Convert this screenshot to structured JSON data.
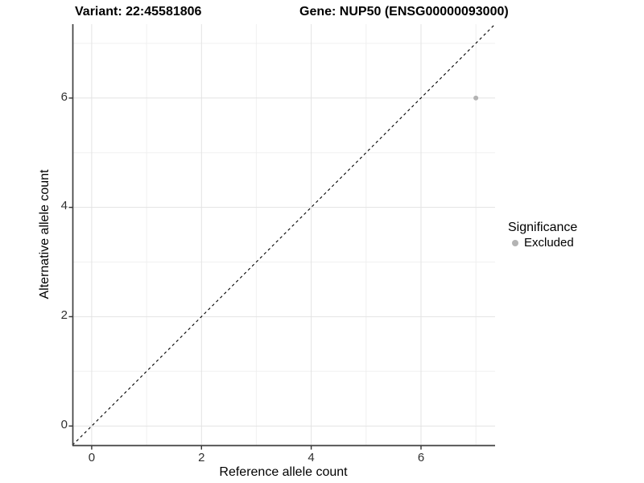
{
  "figure": {
    "titles": {
      "left": "Variant: 22:45581806",
      "right": "Gene: NUP50 (ENSG00000093000)"
    }
  },
  "chart_data": {
    "type": "scatter",
    "xlabel": "Reference allele count",
    "ylabel": "Alternative allele count",
    "xlim": [
      -0.35,
      7.35
    ],
    "ylim": [
      -0.35,
      7.35
    ],
    "xticks": [
      0,
      2,
      4,
      6
    ],
    "yticks": [
      0,
      2,
      4,
      6
    ],
    "grid": "on, every 1 unit, light gray, white panel background",
    "identity_line": {
      "equation": "y = x",
      "style": "dashed",
      "color": "#000000"
    },
    "series": [
      {
        "name": "Excluded",
        "color": "#b3b3b3",
        "marker": "circle",
        "points": [
          {
            "x": 7,
            "y": 6
          }
        ]
      }
    ],
    "legend": {
      "title": "Significance",
      "position": "right",
      "entries": [
        {
          "label": "Excluded",
          "color": "#b3b3b3",
          "marker": "circle"
        }
      ]
    }
  },
  "colors": {
    "axis_line": "#404040",
    "tick_mark": "#333333",
    "grid_major": "#e3e3e3",
    "grid_minor": "#f0f0f0",
    "background": "#ffffff"
  }
}
